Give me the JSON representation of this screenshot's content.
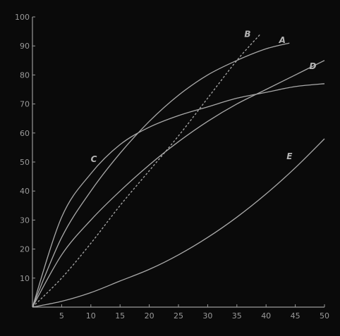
{
  "chart_data": {
    "type": "line",
    "title": "",
    "xlabel": "",
    "ylabel": "",
    "xlim": [
      0,
      50
    ],
    "ylim": [
      0,
      100
    ],
    "x_ticks": [
      "5",
      "10",
      "15",
      "20",
      "25",
      "30",
      "35",
      "40",
      "45",
      "50"
    ],
    "y_ticks": [
      "10",
      "20",
      "30",
      "40",
      "50",
      "60",
      "70",
      "80",
      "90",
      "100"
    ],
    "grid": false,
    "legend": "none",
    "colors": {
      "background": "#0a0a0a",
      "line": "#a9a9a9",
      "text": "#9a9a9a"
    },
    "series": [
      {
        "name": "A",
        "style": "solid",
        "x": [
          0,
          5,
          10,
          15,
          20,
          25,
          30,
          35,
          40,
          44
        ],
        "y": [
          0,
          24,
          40,
          53,
          64,
          73,
          80,
          85,
          89,
          91
        ]
      },
      {
        "name": "B",
        "style": "dashed",
        "x": [
          0,
          5,
          10,
          15,
          20,
          25,
          30,
          35,
          39
        ],
        "y": [
          0,
          10,
          22,
          35,
          47,
          59,
          72,
          85,
          94
        ]
      },
      {
        "name": "C",
        "style": "solid",
        "x": [
          0,
          5,
          10,
          15,
          20,
          25,
          30,
          35,
          40,
          45,
          50
        ],
        "y": [
          0,
          31,
          46,
          56,
          62,
          66,
          69,
          72,
          74,
          76,
          77
        ]
      },
      {
        "name": "D",
        "style": "solid",
        "x": [
          0,
          5,
          10,
          15,
          20,
          25,
          30,
          35,
          40,
          45,
          50
        ],
        "y": [
          0,
          18,
          30,
          40,
          49,
          57,
          64,
          70,
          75,
          80,
          85
        ]
      },
      {
        "name": "E",
        "style": "solid",
        "x": [
          0,
          5,
          10,
          15,
          20,
          25,
          30,
          35,
          40,
          45,
          50
        ],
        "y": [
          0,
          2,
          5,
          9,
          13,
          18,
          24,
          31,
          39,
          48,
          58
        ]
      }
    ]
  }
}
